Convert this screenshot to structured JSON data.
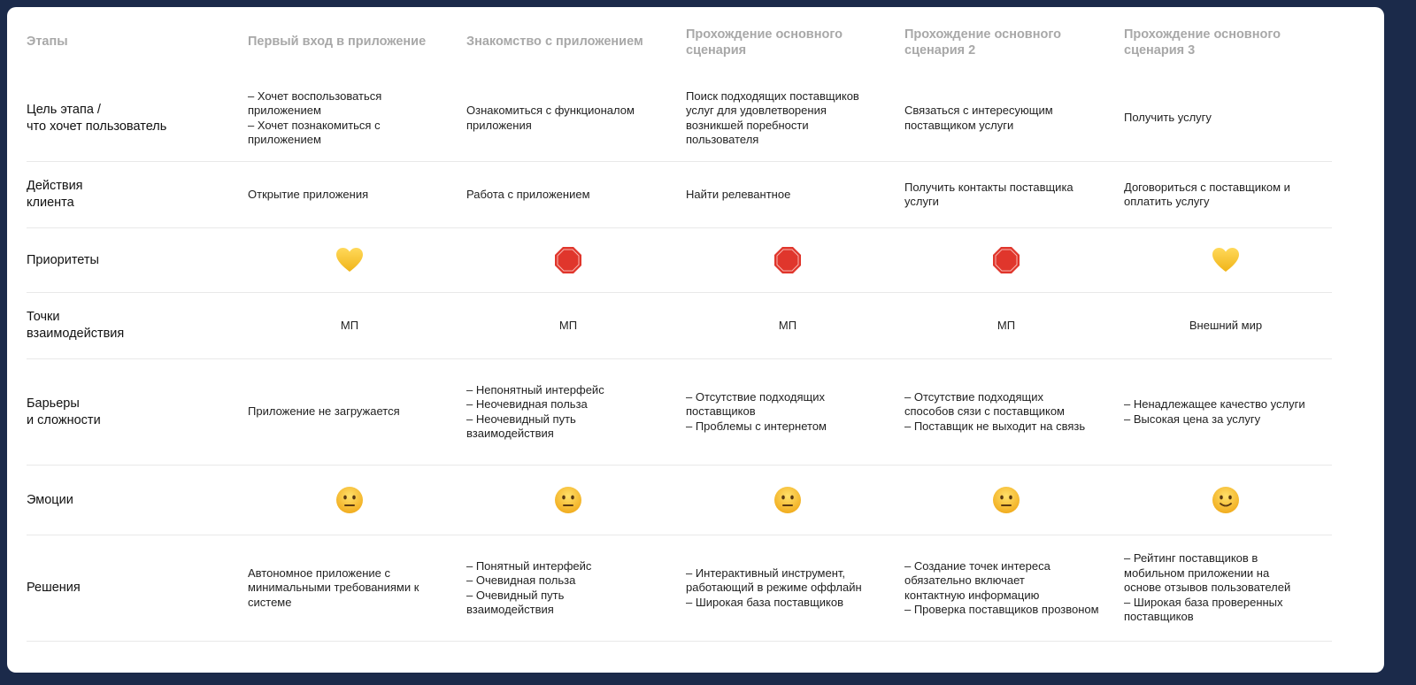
{
  "header": {
    "label": "Этапы",
    "stages": [
      "Первый вход в приложение",
      "Знакомство с приложением",
      "Прохождение основного\nсценария",
      "Прохождение основного\nсценария 2",
      "Прохождение основного\nсценария 3"
    ]
  },
  "rows": [
    {
      "label": "Цель этапа /\nчто хочет пользователь",
      "type": "text",
      "cells": [
        "– Хочет воспользоваться\nприложением\n– Хочет познакомиться с\nприложением",
        "Ознакомиться  с функционалом\nприложения",
        "Поиск подходящих поставщиков\nуслуг для удовлетворения\nвозникшей поребности\nпользователя",
        "Связаться с интересующим\nпоставщиком услуги",
        "Получить услугу"
      ]
    },
    {
      "label": "Действия\nклиента",
      "type": "text",
      "cells": [
        "Открытие приложения",
        "Работа с приложением",
        "Найти релевантное",
        "Получить контакты поставщика\nуслуги",
        "Договориться с поставщиком и\nоплатить услугу"
      ]
    },
    {
      "label": "Приоритеты",
      "type": "icon",
      "icons": [
        "yellow-heart",
        "stop-sign",
        "stop-sign",
        "stop-sign",
        "yellow-heart"
      ]
    },
    {
      "label": "Точки\nвзаимодействия",
      "type": "center",
      "cells": [
        "МП",
        "МП",
        "МП",
        "МП",
        "Внешний мир"
      ]
    },
    {
      "label": "Барьеры\nи сложности",
      "type": "text",
      "cells": [
        "Приложение не загружается",
        "– Непонятный интерфейс\n– Неочевидная польза\n– Неочевидный путь\nвзаимодействия",
        "– Отсутствие подходящих\nпоставщиков\n– Проблемы с интернетом",
        "– Отсутствие подходящих\nспособов сязи с поставщиком\n– Поставщик не выходит на связь",
        " – Ненадлежащее   качество услуги\n – Высокая цена за услугу"
      ]
    },
    {
      "label": "Эмоции",
      "type": "icon",
      "icons": [
        "neutral-face",
        "neutral-face",
        "neutral-face",
        "neutral-face",
        "slightly-smiling-face"
      ]
    },
    {
      "label": "Решения",
      "type": "text",
      "cells": [
        "Автономное приложение с\nминимальными требованиями к\nсистеме",
        "– Понятный интерфейс\n– Очевидная польза\n– Очевидный путь\nвзаимодействия",
        "– Интерактивный инструмент,\nработающий в режиме оффлайн\n– Широкая база поставщиков",
        "– Создание точек интереса\nобязательно включает\nконтактную информацию\n –  Проверка поставщиков прозвоном",
        "– Рейтинг поставщиков в\nмобильном приложении на\nоснове отзывов пользователей\n– Широкая база проверенных\nпоставщиков"
      ]
    }
  ],
  "colors": {
    "frame": "#1b2a4a",
    "header_text": "#a8a8a8",
    "heart": "#f7c531",
    "stop": "#e0362c",
    "face": "#f5c12e"
  }
}
